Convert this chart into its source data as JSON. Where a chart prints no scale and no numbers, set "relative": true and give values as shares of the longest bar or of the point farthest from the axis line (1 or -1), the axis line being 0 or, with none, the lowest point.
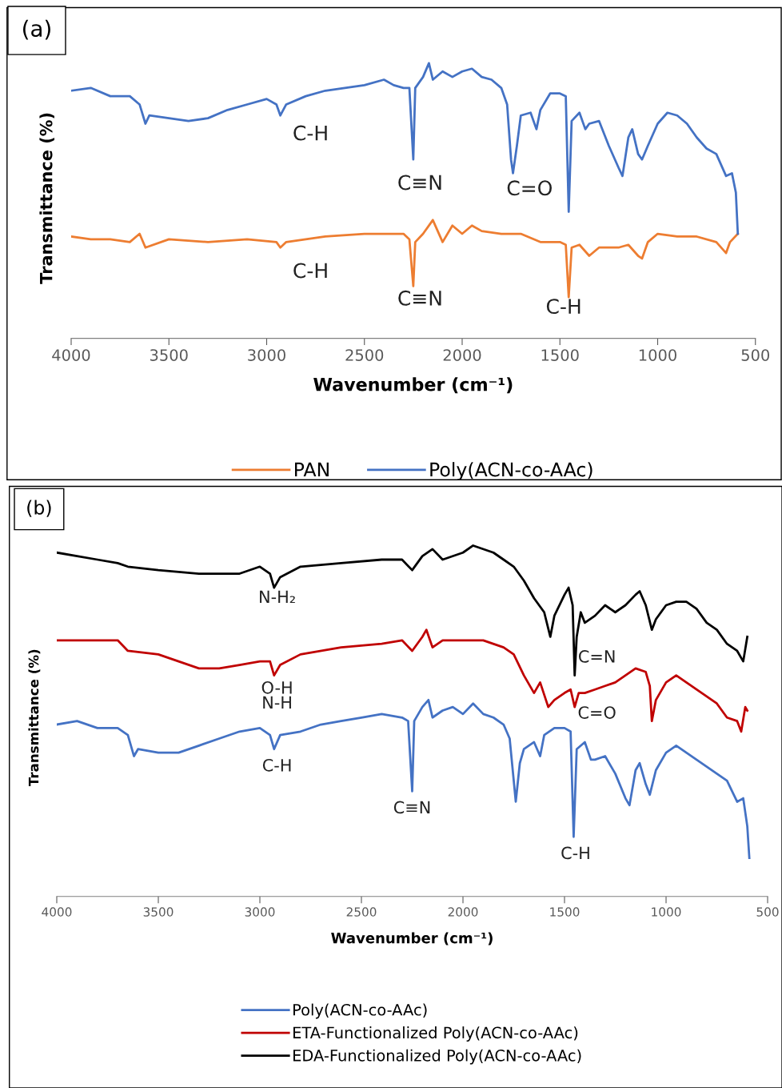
{
  "chart_data": [
    {
      "type": "line",
      "title": "(a)",
      "xlabel": "Wavenumber (cm⁻¹)",
      "ylabel": "Transmittance (%)",
      "relative": true,
      "xlim": [
        4000,
        500
      ],
      "xticks": [
        4000,
        3500,
        3000,
        2500,
        2000,
        1500,
        1000,
        500
      ],
      "legend": "bottom",
      "grid": false,
      "series": [
        {
          "name": "PAN",
          "color": "#ed7d31",
          "x": [
            4000,
            3900,
            3800,
            3700,
            3650,
            3620,
            3500,
            3300,
            3100,
            2950,
            2930,
            2900,
            2700,
            2500,
            2400,
            2300,
            2270,
            2250,
            2240,
            2200,
            2150,
            2100,
            2050,
            2000,
            1950,
            1900,
            1800,
            1700,
            1600,
            1550,
            1500,
            1470,
            1455,
            1440,
            1400,
            1350,
            1300,
            1200,
            1150,
            1100,
            1080,
            1050,
            1000,
            900,
            800,
            700,
            650,
            630,
            590
          ],
          "values": [
            0.37,
            0.36,
            0.36,
            0.35,
            0.38,
            0.33,
            0.36,
            0.35,
            0.36,
            0.35,
            0.33,
            0.35,
            0.37,
            0.38,
            0.38,
            0.38,
            0.36,
            0.19,
            0.35,
            0.38,
            0.43,
            0.35,
            0.41,
            0.38,
            0.41,
            0.39,
            0.38,
            0.38,
            0.35,
            0.35,
            0.35,
            0.34,
            0.15,
            0.33,
            0.34,
            0.3,
            0.33,
            0.33,
            0.34,
            0.3,
            0.29,
            0.35,
            0.38,
            0.37,
            0.37,
            0.35,
            0.31,
            0.35,
            0.38
          ]
        },
        {
          "name": "Poly(ACN-co-AAc)",
          "color": "#4472c4",
          "x": [
            4000,
            3900,
            3800,
            3700,
            3650,
            3620,
            3600,
            3500,
            3400,
            3300,
            3200,
            3100,
            3000,
            2950,
            2930,
            2900,
            2800,
            2700,
            2600,
            2500,
            2400,
            2350,
            2300,
            2270,
            2250,
            2240,
            2200,
            2170,
            2150,
            2100,
            2050,
            2000,
            1950,
            1900,
            1850,
            1800,
            1770,
            1750,
            1740,
            1720,
            1700,
            1650,
            1620,
            1600,
            1550,
            1500,
            1470,
            1455,
            1440,
            1400,
            1370,
            1350,
            1300,
            1250,
            1200,
            1180,
            1150,
            1130,
            1100,
            1080,
            1050,
            1000,
            950,
            900,
            850,
            800,
            750,
            700,
            650,
            620,
            600,
            590
          ],
          "values": [
            0.9,
            0.91,
            0.88,
            0.88,
            0.85,
            0.78,
            0.81,
            0.8,
            0.79,
            0.8,
            0.83,
            0.85,
            0.87,
            0.85,
            0.81,
            0.85,
            0.88,
            0.9,
            0.91,
            0.92,
            0.94,
            0.92,
            0.91,
            0.91,
            0.65,
            0.91,
            0.95,
            1.0,
            0.94,
            0.97,
            0.95,
            0.97,
            0.98,
            0.95,
            0.94,
            0.91,
            0.85,
            0.65,
            0.6,
            0.7,
            0.81,
            0.82,
            0.76,
            0.83,
            0.89,
            0.89,
            0.88,
            0.46,
            0.79,
            0.82,
            0.76,
            0.78,
            0.79,
            0.7,
            0.62,
            0.59,
            0.73,
            0.76,
            0.67,
            0.65,
            0.7,
            0.78,
            0.82,
            0.81,
            0.78,
            0.73,
            0.69,
            0.67,
            0.59,
            0.6,
            0.53,
            0.38
          ]
        }
      ],
      "annotations": [
        "C-H",
        "C≡N",
        "C=O",
        "C-H",
        "C≡N",
        "C-H"
      ]
    },
    {
      "type": "line",
      "title": "(b)",
      "xlabel": "Wavenumber (cm⁻¹)",
      "ylabel": "Transmittance (%)",
      "relative": true,
      "xlim": [
        4000,
        500
      ],
      "xticks": [
        4000,
        3500,
        3000,
        2500,
        2000,
        1500,
        1000,
        500
      ],
      "legend": "bottom",
      "grid": false,
      "series": [
        {
          "name": "Poly(ACN-co-AAc)",
          "color": "#4472c4",
          "x": [
            4000,
            3900,
            3800,
            3700,
            3650,
            3620,
            3600,
            3500,
            3400,
            3300,
            3200,
            3100,
            3000,
            2950,
            2930,
            2900,
            2800,
            2700,
            2600,
            2500,
            2400,
            2300,
            2270,
            2250,
            2240,
            2200,
            2170,
            2150,
            2100,
            2050,
            2000,
            1950,
            1900,
            1850,
            1800,
            1770,
            1740,
            1720,
            1700,
            1650,
            1620,
            1600,
            1550,
            1500,
            1470,
            1455,
            1440,
            1400,
            1370,
            1350,
            1300,
            1250,
            1200,
            1180,
            1150,
            1130,
            1100,
            1080,
            1050,
            1000,
            950,
            900,
            850,
            800,
            750,
            700,
            650,
            620,
            600,
            590
          ],
          "values": [
            0.49,
            0.5,
            0.48,
            0.48,
            0.46,
            0.4,
            0.42,
            0.41,
            0.41,
            0.43,
            0.45,
            0.47,
            0.48,
            0.46,
            0.42,
            0.46,
            0.47,
            0.49,
            0.5,
            0.51,
            0.52,
            0.51,
            0.5,
            0.3,
            0.5,
            0.54,
            0.56,
            0.51,
            0.53,
            0.54,
            0.52,
            0.55,
            0.52,
            0.51,
            0.49,
            0.45,
            0.27,
            0.38,
            0.42,
            0.44,
            0.4,
            0.46,
            0.48,
            0.48,
            0.47,
            0.17,
            0.42,
            0.44,
            0.39,
            0.39,
            0.4,
            0.35,
            0.28,
            0.26,
            0.36,
            0.38,
            0.32,
            0.29,
            0.36,
            0.41,
            0.43,
            0.41,
            0.39,
            0.37,
            0.35,
            0.33,
            0.27,
            0.28,
            0.2,
            0.11
          ]
        },
        {
          "name": "ETA-Functionalized Poly(ACN-co-AAc)",
          "color": "#c00000",
          "x": [
            4000,
            3900,
            3800,
            3700,
            3650,
            3500,
            3400,
            3300,
            3200,
            3100,
            3000,
            2950,
            2930,
            2900,
            2800,
            2600,
            2400,
            2300,
            2250,
            2200,
            2180,
            2150,
            2100,
            2000,
            1900,
            1800,
            1750,
            1700,
            1650,
            1620,
            1580,
            1550,
            1500,
            1470,
            1450,
            1430,
            1400,
            1350,
            1300,
            1250,
            1200,
            1150,
            1100,
            1080,
            1070,
            1050,
            1000,
            950,
            900,
            850,
            800,
            750,
            700,
            650,
            630,
            610,
            600
          ],
          "values": [
            0.73,
            0.73,
            0.73,
            0.73,
            0.7,
            0.69,
            0.67,
            0.65,
            0.65,
            0.66,
            0.67,
            0.67,
            0.63,
            0.66,
            0.69,
            0.71,
            0.72,
            0.73,
            0.7,
            0.74,
            0.76,
            0.71,
            0.73,
            0.73,
            0.73,
            0.71,
            0.69,
            0.63,
            0.58,
            0.61,
            0.54,
            0.56,
            0.58,
            0.59,
            0.54,
            0.58,
            0.58,
            0.59,
            0.6,
            0.61,
            0.63,
            0.65,
            0.64,
            0.6,
            0.5,
            0.56,
            0.61,
            0.63,
            0.61,
            0.59,
            0.57,
            0.55,
            0.51,
            0.5,
            0.47,
            0.54,
            0.53
          ]
        },
        {
          "name": "EDA-Functionalized Poly(ACN-co-AAc)",
          "color": "#000000",
          "x": [
            4000,
            3900,
            3800,
            3700,
            3650,
            3500,
            3300,
            3100,
            3000,
            2950,
            2930,
            2900,
            2800,
            2600,
            2400,
            2300,
            2250,
            2200,
            2150,
            2100,
            2000,
            1950,
            1850,
            1800,
            1750,
            1700,
            1650,
            1600,
            1570,
            1550,
            1500,
            1480,
            1460,
            1450,
            1440,
            1420,
            1400,
            1350,
            1300,
            1250,
            1200,
            1150,
            1130,
            1100,
            1070,
            1050,
            1000,
            950,
            900,
            850,
            800,
            750,
            700,
            650,
            620,
            600
          ],
          "values": [
            0.98,
            0.97,
            0.96,
            0.95,
            0.94,
            0.93,
            0.92,
            0.92,
            0.94,
            0.92,
            0.88,
            0.91,
            0.94,
            0.95,
            0.96,
            0.96,
            0.93,
            0.97,
            0.99,
            0.96,
            0.98,
            1.0,
            0.98,
            0.96,
            0.94,
            0.9,
            0.85,
            0.81,
            0.74,
            0.8,
            0.86,
            0.88,
            0.83,
            0.63,
            0.74,
            0.81,
            0.78,
            0.8,
            0.83,
            0.81,
            0.83,
            0.86,
            0.87,
            0.83,
            0.76,
            0.79,
            0.83,
            0.84,
            0.84,
            0.82,
            0.78,
            0.76,
            0.72,
            0.7,
            0.67,
            0.74
          ]
        }
      ],
      "annotations": [
        "N-H₂",
        "O-H\nN-H",
        "C-H",
        "C≡N",
        "C=N",
        "C=O",
        "C-H"
      ]
    }
  ]
}
